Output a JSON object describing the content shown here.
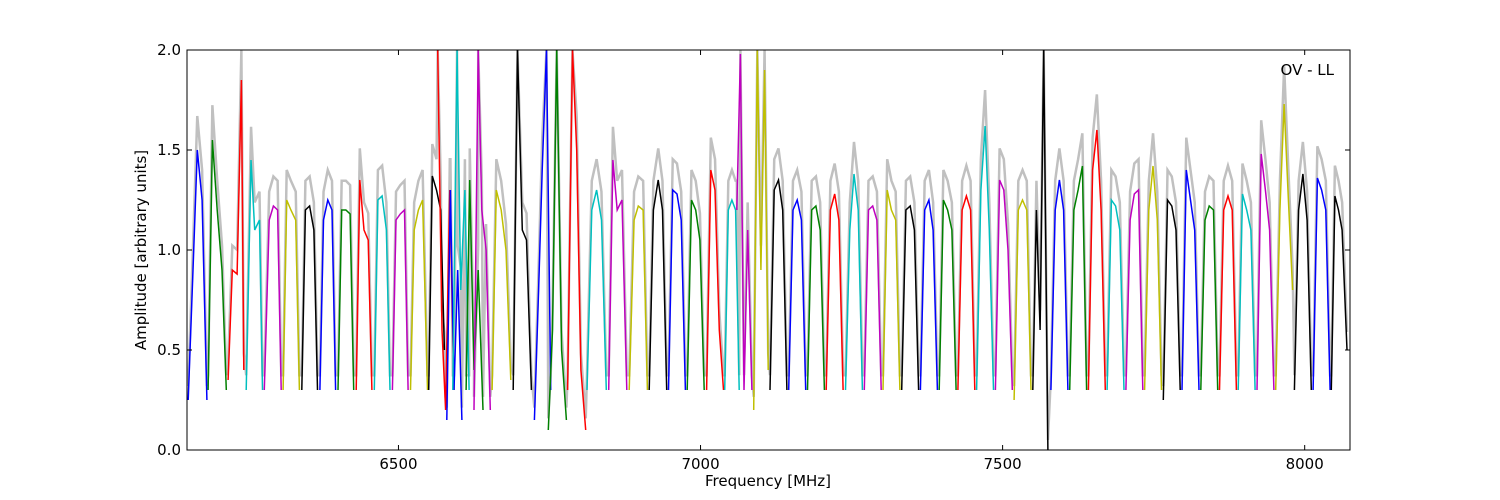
{
  "chart_data": {
    "type": "line",
    "title": "",
    "annotation": "OV - LL",
    "xlabel": "Frequency [MHz]",
    "ylabel": "Amplitude [arbitrary units]",
    "xlim": [
      6150,
      8075
    ],
    "ylim": [
      0,
      2.0
    ],
    "xticks": [
      6500,
      7000,
      7500,
      8000
    ],
    "xtick_labels": [
      "6500",
      "7000",
      "7500",
      "8000"
    ],
    "yticks": [
      0.0,
      0.5,
      1.0,
      1.5,
      2.0
    ],
    "ytick_labels": [
      "0.0",
      "0.5",
      "1.0",
      "1.5",
      "2.0"
    ],
    "grid": false,
    "background_color": "#c0c0c0",
    "colors": [
      "#0000ff",
      "#008000",
      "#ff0000",
      "#00bfbf",
      "#bf00bf",
      "#bfbf00",
      "#000000"
    ],
    "series": [
      {
        "color": "#0000ff",
        "x": [
          6152,
          6160,
          6167,
          6175,
          6183
        ],
        "y": [
          0.25,
          0.9,
          1.5,
          1.25,
          0.25
        ]
      },
      {
        "color": "#008000",
        "x": [
          6185,
          6192,
          6200,
          6208,
          6215
        ],
        "y": [
          0.3,
          1.55,
          1.2,
          0.9,
          0.3
        ]
      },
      {
        "color": "#ff0000",
        "x": [
          6218,
          6225,
          6233,
          6240,
          6244
        ],
        "y": [
          0.35,
          0.9,
          0.88,
          1.85,
          0.4
        ]
      },
      {
        "color": "#00bfbf",
        "x": [
          6248,
          6256,
          6262,
          6270,
          6275
        ],
        "y": [
          0.3,
          1.45,
          1.1,
          1.15,
          0.3
        ]
      },
      {
        "color": "#bf00bf",
        "x": [
          6278,
          6286,
          6293,
          6300,
          6306
        ],
        "y": [
          0.3,
          1.15,
          1.22,
          1.2,
          0.3
        ]
      },
      {
        "color": "#bfbf00",
        "x": [
          6309,
          6315,
          6322,
          6330,
          6336
        ],
        "y": [
          0.3,
          1.25,
          1.2,
          1.15,
          0.3
        ]
      },
      {
        "color": "#000000",
        "x": [
          6340,
          6346,
          6353,
          6360,
          6366
        ],
        "y": [
          0.3,
          1.2,
          1.22,
          1.1,
          0.3
        ]
      },
      {
        "color": "#0000ff",
        "x": [
          6370,
          6376,
          6383,
          6390,
          6396
        ],
        "y": [
          0.3,
          1.15,
          1.25,
          1.2,
          0.3
        ]
      },
      {
        "color": "#008000",
        "x": [
          6400,
          6406,
          6413,
          6420,
          6426
        ],
        "y": [
          0.3,
          1.2,
          1.2,
          1.18,
          0.3
        ]
      },
      {
        "color": "#ff0000",
        "x": [
          6430,
          6436,
          6443,
          6450,
          6456
        ],
        "y": [
          0.3,
          1.35,
          1.1,
          1.05,
          0.3
        ]
      },
      {
        "color": "#00bfbf",
        "x": [
          6460,
          6466,
          6473,
          6480,
          6486
        ],
        "y": [
          0.3,
          1.25,
          1.27,
          1.1,
          0.3
        ]
      },
      {
        "color": "#bf00bf",
        "x": [
          6490,
          6496,
          6503,
          6510,
          6516
        ],
        "y": [
          0.3,
          1.15,
          1.18,
          1.2,
          0.3
        ]
      },
      {
        "color": "#bfbf00",
        "x": [
          6520,
          6526,
          6533,
          6540,
          6548
        ],
        "y": [
          0.3,
          1.1,
          1.2,
          1.25,
          0.3
        ]
      },
      {
        "color": "#000000",
        "x": [
          6550,
          6556,
          6563,
          6570,
          6576
        ],
        "y": [
          0.3,
          1.37,
          1.3,
          1.2,
          0.5
        ]
      },
      {
        "color": "#ff0000",
        "x": [
          6565,
          6572,
          6578,
          6585,
          6592
        ],
        "y": [
          2.0,
          0.6,
          0.2,
          1.3,
          0.3
        ]
      },
      {
        "color": "#0000ff",
        "x": [
          6580,
          6586,
          6592,
          6598,
          6605
        ],
        "y": [
          0.15,
          1.3,
          0.3,
          0.9,
          0.15
        ]
      },
      {
        "color": "#00bfbf",
        "x": [
          6590,
          6597,
          6603,
          6610,
          6617
        ],
        "y": [
          0.3,
          2.0,
          0.8,
          1.3,
          0.3
        ]
      },
      {
        "color": "#008000",
        "x": [
          6612,
          6618,
          6625,
          6632,
          6640
        ],
        "y": [
          0.3,
          1.35,
          0.4,
          0.9,
          0.2
        ]
      },
      {
        "color": "#bf00bf",
        "x": [
          6625,
          6632,
          6638,
          6645,
          6652
        ],
        "y": [
          0.2,
          2.0,
          1.2,
          1.0,
          0.2
        ]
      },
      {
        "color": "#bfbf00",
        "x": [
          6655,
          6662,
          6670,
          6678,
          6686
        ],
        "y": [
          0.3,
          1.3,
          1.2,
          1.0,
          0.35
        ]
      },
      {
        "color": "#000000",
        "x": [
          6690,
          6697,
          6705,
          6712,
          6720
        ],
        "y": [
          0.3,
          2.0,
          1.1,
          1.05,
          0.3
        ]
      },
      {
        "color": "#0000ff",
        "x": [
          6725,
          6732,
          6738,
          6745,
          6752
        ],
        "y": [
          0.15,
          0.8,
          1.4,
          2.0,
          0.3
        ]
      },
      {
        "color": "#008000",
        "x": [
          6748,
          6755,
          6762,
          6770,
          6778
        ],
        "y": [
          0.1,
          0.6,
          2.0,
          0.5,
          0.15
        ]
      },
      {
        "color": "#ff0000",
        "x": [
          6780,
          6788,
          6795,
          6802,
          6810
        ],
        "y": [
          0.3,
          2.0,
          1.5,
          0.4,
          0.1
        ]
      },
      {
        "color": "#00bfbf",
        "x": [
          6812,
          6820,
          6828,
          6836,
          6844
        ],
        "y": [
          0.3,
          1.2,
          1.3,
          1.15,
          0.3
        ]
      },
      {
        "color": "#bf00bf",
        "x": [
          6848,
          6855,
          6862,
          6870,
          6878
        ],
        "y": [
          0.3,
          1.45,
          1.2,
          1.25,
          0.3
        ]
      },
      {
        "color": "#bfbf00",
        "x": [
          6882,
          6890,
          6897,
          6905,
          6912
        ],
        "y": [
          0.3,
          1.15,
          1.22,
          1.2,
          0.3
        ]
      },
      {
        "color": "#000000",
        "x": [
          6915,
          6922,
          6930,
          6937,
          6944
        ],
        "y": [
          0.3,
          1.2,
          1.35,
          1.2,
          0.3
        ]
      },
      {
        "color": "#0000ff",
        "x": [
          6947,
          6954,
          6961,
          6968,
          6975
        ],
        "y": [
          0.3,
          1.3,
          1.28,
          1.15,
          0.3
        ]
      },
      {
        "color": "#008000",
        "x": [
          6978,
          6985,
          6992,
          6999,
          7006
        ],
        "y": [
          0.3,
          1.25,
          1.2,
          1.05,
          0.3
        ]
      },
      {
        "color": "#ff0000",
        "x": [
          7010,
          7017,
          7024,
          7031,
          7038
        ],
        "y": [
          0.3,
          1.4,
          1.3,
          0.6,
          0.3
        ]
      },
      {
        "color": "#00bfbf",
        "x": [
          7040,
          7046,
          7052,
          7058,
          7064
        ],
        "y": [
          0.3,
          1.2,
          1.25,
          1.2,
          0.3
        ]
      },
      {
        "color": "#bf00bf",
        "x": [
          7060,
          7066,
          7072,
          7078,
          7085
        ],
        "y": [
          1.2,
          1.98,
          0.3,
          1.1,
          0.3
        ]
      },
      {
        "color": "#bfbf00",
        "x": [
          7088,
          7094,
          7100,
          7106,
          7112
        ],
        "y": [
          0.2,
          2.0,
          0.9,
          1.9,
          0.4
        ]
      },
      {
        "color": "#000000",
        "x": [
          7115,
          7122,
          7129,
          7136,
          7143
        ],
        "y": [
          0.3,
          1.3,
          1.35,
          1.2,
          0.3
        ]
      },
      {
        "color": "#0000ff",
        "x": [
          7146,
          7153,
          7160,
          7167,
          7174
        ],
        "y": [
          0.3,
          1.2,
          1.25,
          1.15,
          0.3
        ]
      },
      {
        "color": "#008000",
        "x": [
          7177,
          7184,
          7191,
          7198,
          7205
        ],
        "y": [
          0.3,
          1.2,
          1.22,
          1.1,
          0.3
        ]
      },
      {
        "color": "#ff0000",
        "x": [
          7208,
          7215,
          7222,
          7229,
          7236
        ],
        "y": [
          0.3,
          1.2,
          1.28,
          1.15,
          0.3
        ]
      },
      {
        "color": "#00bfbf",
        "x": [
          7240,
          7247,
          7254,
          7261,
          7268
        ],
        "y": [
          0.3,
          1.1,
          1.38,
          1.2,
          0.3
        ]
      },
      {
        "color": "#bf00bf",
        "x": [
          7271,
          7278,
          7285,
          7292,
          7299
        ],
        "y": [
          0.3,
          1.2,
          1.22,
          1.15,
          0.3
        ]
      },
      {
        "color": "#bfbf00",
        "x": [
          7302,
          7309,
          7316,
          7323,
          7330
        ],
        "y": [
          0.3,
          1.3,
          1.2,
          1.15,
          0.3
        ]
      },
      {
        "color": "#000000",
        "x": [
          7333,
          7340,
          7347,
          7354,
          7361
        ],
        "y": [
          0.3,
          1.2,
          1.22,
          1.1,
          0.3
        ]
      },
      {
        "color": "#0000ff",
        "x": [
          7364,
          7371,
          7378,
          7385,
          7392
        ],
        "y": [
          0.3,
          1.2,
          1.25,
          1.1,
          0.3
        ]
      },
      {
        "color": "#008000",
        "x": [
          7395,
          7402,
          7409,
          7416,
          7423
        ],
        "y": [
          0.3,
          1.25,
          1.2,
          1.1,
          0.3
        ]
      },
      {
        "color": "#ff0000",
        "x": [
          7426,
          7433,
          7440,
          7447,
          7454
        ],
        "y": [
          0.3,
          1.2,
          1.27,
          1.2,
          0.3
        ]
      },
      {
        "color": "#00bfbf",
        "x": [
          7457,
          7464,
          7471,
          7478,
          7485
        ],
        "y": [
          0.3,
          1.3,
          1.62,
          1.1,
          0.3
        ]
      },
      {
        "color": "#bf00bf",
        "x": [
          7488,
          7495,
          7502,
          7509,
          7516
        ],
        "y": [
          0.3,
          1.35,
          1.3,
          1.0,
          0.3
        ]
      },
      {
        "color": "#bfbf00",
        "x": [
          7519,
          7526,
          7533,
          7540,
          7547
        ],
        "y": [
          0.25,
          1.2,
          1.25,
          1.2,
          0.3
        ]
      },
      {
        "color": "#000000",
        "x": [
          7550,
          7556,
          7562,
          7568,
          7575
        ],
        "y": [
          0.3,
          1.2,
          0.6,
          2.0,
          0.0
        ]
      },
      {
        "color": "#0000ff",
        "x": [
          7580,
          7587,
          7594,
          7601,
          7608
        ],
        "y": [
          0.3,
          1.2,
          1.35,
          1.2,
          0.3
        ]
      },
      {
        "color": "#008000",
        "x": [
          7611,
          7618,
          7625,
          7632,
          7639
        ],
        "y": [
          0.3,
          1.2,
          1.3,
          1.42,
          0.3
        ]
      },
      {
        "color": "#ff0000",
        "x": [
          7642,
          7649,
          7656,
          7663,
          7670
        ],
        "y": [
          0.3,
          1.4,
          1.6,
          1.2,
          0.3
        ]
      },
      {
        "color": "#00bfbf",
        "x": [
          7673,
          7680,
          7687,
          7694,
          7701
        ],
        "y": [
          0.3,
          1.25,
          1.22,
          1.1,
          0.3
        ]
      },
      {
        "color": "#bf00bf",
        "x": [
          7704,
          7711,
          7718,
          7725,
          7732
        ],
        "y": [
          0.3,
          1.15,
          1.28,
          1.3,
          0.3
        ]
      },
      {
        "color": "#bfbf00",
        "x": [
          7735,
          7742,
          7749,
          7756,
          7763
        ],
        "y": [
          0.3,
          1.2,
          1.42,
          1.15,
          0.3
        ]
      },
      {
        "color": "#000000",
        "x": [
          7766,
          7773,
          7780,
          7787,
          7794
        ],
        "y": [
          0.25,
          1.25,
          1.22,
          1.1,
          0.3
        ]
      },
      {
        "color": "#0000ff",
        "x": [
          7797,
          7804,
          7811,
          7818,
          7825
        ],
        "y": [
          0.3,
          1.4,
          1.25,
          1.1,
          0.3
        ]
      },
      {
        "color": "#008000",
        "x": [
          7828,
          7835,
          7842,
          7849,
          7856
        ],
        "y": [
          0.3,
          1.15,
          1.22,
          1.2,
          0.3
        ]
      },
      {
        "color": "#ff0000",
        "x": [
          7859,
          7866,
          7873,
          7880,
          7887
        ],
        "y": [
          0.3,
          1.2,
          1.27,
          1.2,
          0.3
        ]
      },
      {
        "color": "#00bfbf",
        "x": [
          7890,
          7897,
          7904,
          7911,
          7918
        ],
        "y": [
          0.3,
          1.28,
          1.2,
          1.1,
          0.3
        ]
      },
      {
        "color": "#bf00bf",
        "x": [
          7921,
          7928,
          7935,
          7942,
          7949
        ],
        "y": [
          0.3,
          1.48,
          1.3,
          1.1,
          0.3
        ]
      },
      {
        "color": "#bfbf00",
        "x": [
          7952,
          7959,
          7966,
          7973,
          7980
        ],
        "y": [
          0.3,
          1.2,
          1.73,
          1.25,
          0.8
        ]
      },
      {
        "color": "#000000",
        "x": [
          7983,
          7990,
          7997,
          8004,
          8011
        ],
        "y": [
          0.3,
          1.2,
          1.38,
          1.15,
          0.3
        ]
      },
      {
        "color": "#0000ff",
        "x": [
          8014,
          8021,
          8028,
          8035,
          8042
        ],
        "y": [
          0.3,
          1.36,
          1.3,
          1.2,
          0.3
        ]
      },
      {
        "color": "#000000",
        "x": [
          8044,
          8050,
          8056,
          8062,
          8070
        ],
        "y": [
          0.3,
          1.27,
          1.2,
          1.1,
          0.5
        ]
      }
    ]
  }
}
